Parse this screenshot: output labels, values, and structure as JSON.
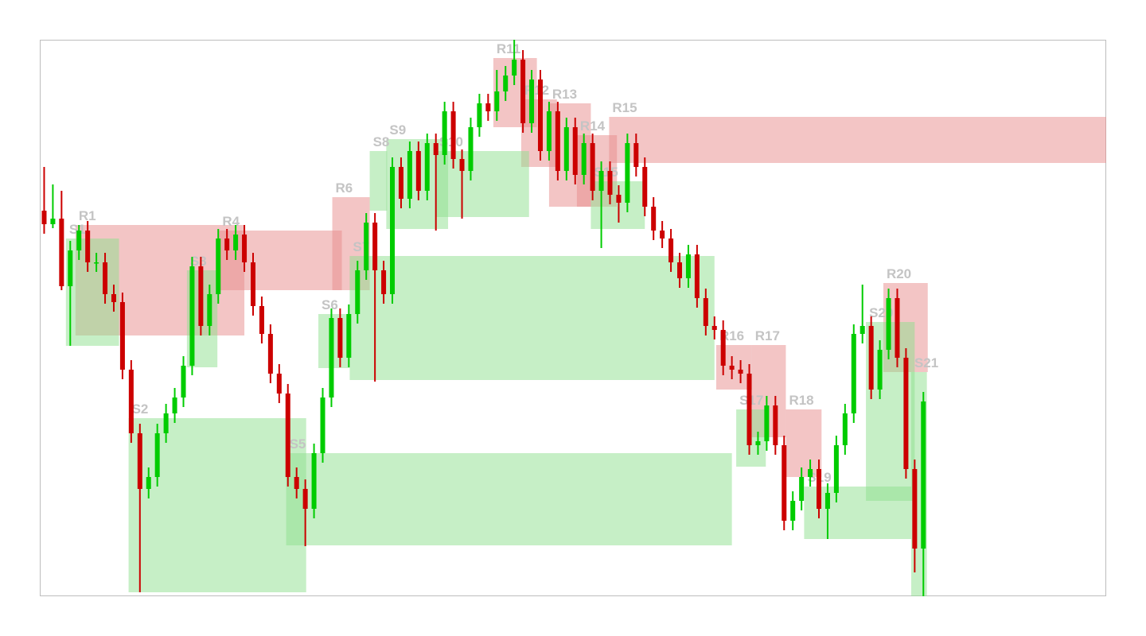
{
  "chart_data": {
    "type": "candlestick",
    "up_color": "#00cc00",
    "down_color": "#cc0000",
    "resistance_color": "#e88c8c",
    "support_color": "#8ee08e",
    "xlim": [
      -0.5,
      122
    ],
    "ylim": [
      0,
      700
    ],
    "open": [
      485,
      468,
      475,
      390,
      435,
      460,
      420,
      420,
      380,
      370,
      285,
      205,
      135,
      150,
      205,
      230,
      250,
      290,
      415,
      340,
      380,
      450,
      435,
      455,
      420,
      365,
      330,
      280,
      255,
      150,
      135,
      110,
      180,
      250,
      350,
      300,
      355,
      410,
      470,
      410,
      380,
      540,
      500,
      560,
      510,
      570,
      555,
      610,
      550,
      535,
      590,
      620,
      610,
      635,
      655,
      675,
      595,
      650,
      560,
      610,
      535,
      590,
      530,
      570,
      510,
      535,
      505,
      495,
      570,
      540,
      490,
      460,
      450,
      420,
      400,
      430,
      375,
      340,
      335,
      290,
      285,
      280,
      190,
      195,
      240,
      190,
      95,
      120,
      150,
      160,
      110,
      130,
      190,
      230,
      330,
      340,
      260,
      310,
      375,
      300,
      160,
      60
    ],
    "high": [
      540,
      518,
      510,
      447,
      467,
      472,
      432,
      432,
      392,
      382,
      297,
      217,
      162,
      217,
      242,
      262,
      302,
      427,
      427,
      392,
      462,
      462,
      467,
      467,
      432,
      377,
      342,
      292,
      267,
      162,
      147,
      192,
      262,
      362,
      362,
      367,
      422,
      482,
      482,
      422,
      552,
      552,
      572,
      572,
      582,
      582,
      622,
      622,
      562,
      602,
      632,
      632,
      662,
      667,
      700,
      687,
      662,
      662,
      622,
      622,
      602,
      602,
      582,
      582,
      547,
      547,
      517,
      582,
      582,
      552,
      502,
      472,
      462,
      432,
      442,
      442,
      387,
      352,
      347,
      302,
      297,
      292,
      207,
      252,
      252,
      202,
      132,
      162,
      172,
      172,
      142,
      202,
      242,
      342,
      392,
      352,
      322,
      387,
      387,
      312,
      172,
      257
    ],
    "low": [
      456,
      463,
      385,
      315,
      423,
      408,
      408,
      368,
      358,
      273,
      193,
      5,
      123,
      138,
      193,
      218,
      238,
      278,
      328,
      328,
      368,
      423,
      423,
      408,
      353,
      318,
      268,
      243,
      138,
      123,
      63,
      98,
      168,
      238,
      288,
      288,
      343,
      398,
      270,
      368,
      368,
      488,
      488,
      498,
      498,
      460,
      543,
      538,
      475,
      523,
      578,
      598,
      598,
      623,
      643,
      583,
      583,
      548,
      548,
      523,
      523,
      518,
      518,
      498,
      438,
      493,
      470,
      483,
      528,
      478,
      448,
      438,
      408,
      388,
      388,
      363,
      328,
      323,
      278,
      273,
      268,
      178,
      178,
      183,
      178,
      83,
      83,
      108,
      138,
      98,
      72,
      118,
      178,
      218,
      318,
      248,
      248,
      298,
      288,
      148,
      30,
      0
    ],
    "close": [
      468,
      475,
      390,
      435,
      460,
      420,
      420,
      380,
      370,
      285,
      205,
      135,
      150,
      205,
      230,
      250,
      290,
      415,
      340,
      380,
      450,
      435,
      455,
      420,
      365,
      330,
      280,
      255,
      150,
      135,
      110,
      180,
      250,
      350,
      300,
      355,
      410,
      470,
      410,
      380,
      540,
      500,
      560,
      510,
      570,
      555,
      610,
      550,
      535,
      590,
      620,
      610,
      635,
      655,
      675,
      595,
      650,
      560,
      610,
      535,
      590,
      530,
      570,
      510,
      535,
      505,
      495,
      570,
      540,
      490,
      460,
      450,
      420,
      400,
      430,
      375,
      340,
      335,
      290,
      285,
      280,
      190,
      195,
      240,
      190,
      95,
      120,
      150,
      160,
      110,
      130,
      190,
      230,
      330,
      340,
      260,
      310,
      375,
      300,
      160,
      60,
      245
    ],
    "zones": [
      {
        "label": "R1",
        "kind": "resistance",
        "start": 3.6,
        "end": 23.0,
        "top": 467,
        "bottom": 328
      },
      {
        "label": "R4",
        "kind": "resistance",
        "start": 20.1,
        "end": 34.2,
        "top": 460,
        "bottom": 385
      },
      {
        "label": "R6",
        "kind": "resistance",
        "start": 33.1,
        "end": 37.4,
        "top": 502,
        "bottom": 385
      },
      {
        "label": "R11",
        "kind": "resistance",
        "start": 51.6,
        "end": 56.6,
        "top": 677,
        "bottom": 590
      },
      {
        "label": "R12",
        "kind": "resistance",
        "start": 54.8,
        "end": 58.9,
        "top": 625,
        "bottom": 540
      },
      {
        "label": "R13",
        "kind": "resistance",
        "start": 58.0,
        "end": 62.8,
        "top": 620,
        "bottom": 490
      },
      {
        "label": "R14",
        "kind": "resistance",
        "start": 61.2,
        "end": 65.8,
        "top": 580,
        "bottom": 490
      },
      {
        "label": "R15",
        "kind": "resistance",
        "start": 64.9,
        "end": 122,
        "top": 603,
        "bottom": 545
      },
      {
        "label": "R16",
        "kind": "resistance",
        "start": 77.2,
        "end": 81.3,
        "top": 316,
        "bottom": 260
      },
      {
        "label": "R17",
        "kind": "resistance",
        "start": 81.3,
        "end": 85.2,
        "top": 316,
        "bottom": 200
      },
      {
        "label": "R18",
        "kind": "resistance",
        "start": 85.2,
        "end": 89.3,
        "top": 235,
        "bottom": 150
      },
      {
        "label": "R20",
        "kind": "resistance",
        "start": 96.4,
        "end": 101.5,
        "top": 394,
        "bottom": 282
      },
      {
        "label": "S1",
        "kind": "support",
        "start": 2.5,
        "end": 8.6,
        "top": 450,
        "bottom": 315
      },
      {
        "label": "S2",
        "kind": "support",
        "start": 9.7,
        "end": 30.1,
        "top": 224,
        "bottom": 5
      },
      {
        "label": "S3",
        "kind": "support",
        "start": 16.4,
        "end": 19.9,
        "top": 410,
        "bottom": 288
      },
      {
        "label": "S5",
        "kind": "support",
        "start": 27.8,
        "end": 79.0,
        "top": 180,
        "bottom": 64
      },
      {
        "label": "S6",
        "kind": "support",
        "start": 31.5,
        "end": 35.1,
        "top": 355,
        "bottom": 287
      },
      {
        "label": "S7",
        "kind": "support",
        "start": 35.1,
        "end": 77.0,
        "top": 428,
        "bottom": 272
      },
      {
        "label": "S8",
        "kind": "support",
        "start": 37.4,
        "end": 39.4,
        "top": 560,
        "bottom": 485
      },
      {
        "label": "S9",
        "kind": "support",
        "start": 39.3,
        "end": 46.4,
        "top": 575,
        "bottom": 462
      },
      {
        "label": "S10",
        "kind": "support",
        "start": 45.0,
        "end": 55.7,
        "top": 560,
        "bottom": 477
      },
      {
        "label": "S15",
        "kind": "support",
        "start": 62.8,
        "end": 69.0,
        "top": 522,
        "bottom": 462
      },
      {
        "label": "S17",
        "kind": "support",
        "start": 79.5,
        "end": 82.9,
        "top": 235,
        "bottom": 163
      },
      {
        "label": "S19",
        "kind": "support",
        "start": 87.3,
        "end": 99.6,
        "top": 138,
        "bottom": 72
      },
      {
        "label": "S20",
        "kind": "support",
        "start": 94.4,
        "end": 100.0,
        "top": 345,
        "bottom": 120
      },
      {
        "label": "S21",
        "kind": "support",
        "start": 99.6,
        "end": 101.4,
        "top": 282,
        "bottom": 0
      }
    ]
  }
}
